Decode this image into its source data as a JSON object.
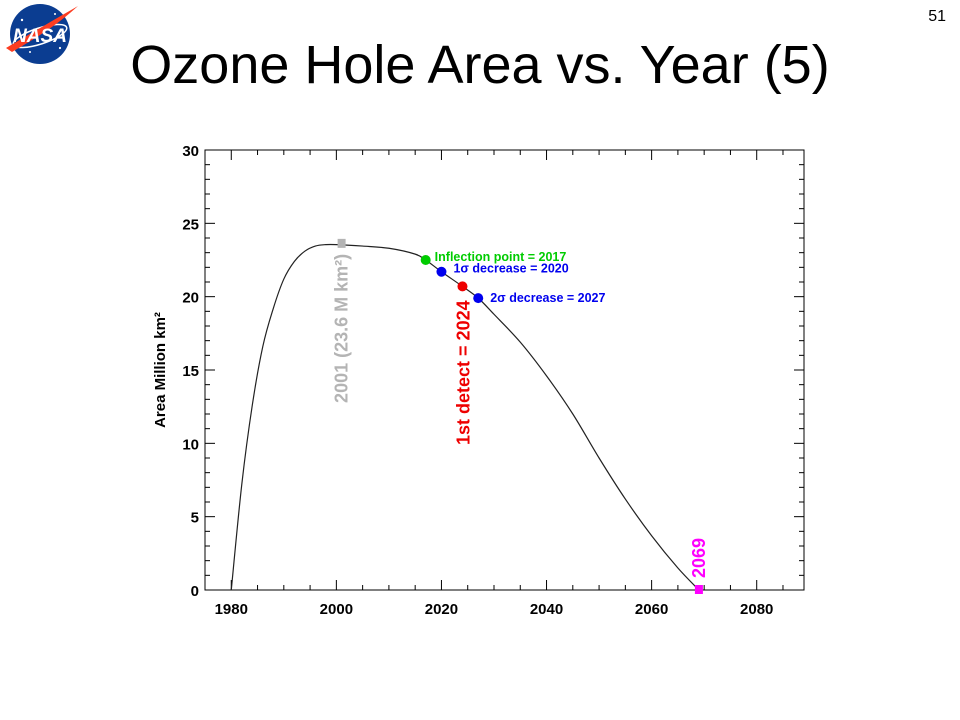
{
  "slide": {
    "number": "51",
    "title": "Ozone Hole Area vs. Year (5)",
    "logo_text": "NASA"
  },
  "chart_data": {
    "type": "line",
    "title": "",
    "xlabel": "",
    "ylabel": "Area Million km²",
    "xlim": [
      1975,
      2089
    ],
    "ylim": [
      0,
      30
    ],
    "x_ticks": [
      1980,
      2000,
      2020,
      2040,
      2060,
      2080
    ],
    "y_ticks": [
      0,
      5,
      10,
      15,
      20,
      25,
      30
    ],
    "grid": false,
    "curve": {
      "x": [
        1980,
        1982,
        1984,
        1986,
        1988,
        1990,
        1992,
        1994,
        1996,
        1998,
        2000,
        2005,
        2010,
        2015,
        2017,
        2020,
        2024,
        2027,
        2030,
        2035,
        2040,
        2045,
        2050,
        2055,
        2060,
        2065,
        2069
      ],
      "y": [
        0,
        7.2,
        12.6,
        16.6,
        19.2,
        21.2,
        22.4,
        23.1,
        23.45,
        23.55,
        23.55,
        23.45,
        23.3,
        22.9,
        22.5,
        21.7,
        20.7,
        19.9,
        18.8,
        16.9,
        14.6,
        12.0,
        9.0,
        6.2,
        3.7,
        1.5,
        0
      ]
    },
    "markers": [
      {
        "label": "2001 (23.6 M km²)",
        "x": 2001,
        "y": 23.6,
        "color": "#b4b4b4",
        "shape": "square"
      },
      {
        "label": "Inflection point = 2017",
        "x": 2017,
        "y": 22.5,
        "color": "#00cc00",
        "shape": "circle"
      },
      {
        "label": "1σ  decrease = 2020",
        "x": 2020,
        "y": 21.7,
        "color": "#0000ee",
        "shape": "circle"
      },
      {
        "label": "1st detect = 2024",
        "x": 2024,
        "y": 20.7,
        "color": "#ee0000",
        "shape": "circle"
      },
      {
        "label": "2σ  decrease = 2027",
        "x": 2027,
        "y": 19.9,
        "color": "#0000ee",
        "shape": "circle"
      },
      {
        "label": "2069",
        "x": 2069,
        "y": 0,
        "color": "#ff00ff",
        "shape": "square"
      }
    ]
  }
}
